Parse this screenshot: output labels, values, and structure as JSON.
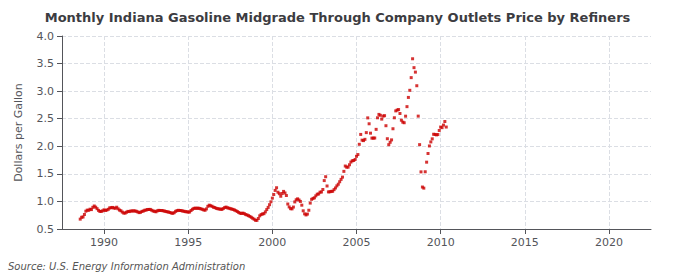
{
  "chart_data": {
    "type": "scatter",
    "title": "Monthly Indiana Gasoline Midgrade Through Company Outlets Price by Refiners",
    "ylabel": "Dollars per Gallon",
    "source": "Source: U.S. Energy Information Administration",
    "color": "#cc0000",
    "marker": "square",
    "grid": true,
    "xlim": [
      1987.5,
      2022.5
    ],
    "xticks": [
      1990,
      1995,
      2000,
      2005,
      2010,
      2015,
      2020
    ],
    "ylim": [
      0.5,
      4.0
    ],
    "yticks": [
      0.5,
      {
        "value": 1.0,
        "label": "1.0"
      },
      1.5,
      {
        "value": 2.0,
        "label": "2.0"
      },
      2.5,
      {
        "value": 3.0,
        "label": "3.0"
      },
      3.5,
      {
        "value": 4.0,
        "label": "4.0"
      }
    ],
    "x": [
      1988.583,
      1988.667,
      1988.75,
      1988.833,
      1988.917,
      1989.0,
      1989.083,
      1989.167,
      1989.25,
      1989.333,
      1989.417,
      1989.5,
      1989.583,
      1989.667,
      1989.75,
      1989.833,
      1989.917,
      1990.0,
      1990.083,
      1990.167,
      1990.25,
      1990.333,
      1990.417,
      1990.5,
      1990.583,
      1990.667,
      1990.75,
      1990.833,
      1990.917,
      1991.0,
      1991.083,
      1991.167,
      1991.25,
      1991.333,
      1991.417,
      1991.5,
      1991.583,
      1991.667,
      1991.75,
      1991.833,
      1991.917,
      1992.0,
      1992.083,
      1992.167,
      1992.25,
      1992.333,
      1992.417,
      1992.5,
      1992.583,
      1992.667,
      1992.75,
      1992.833,
      1992.917,
      1993.0,
      1993.083,
      1993.167,
      1993.25,
      1993.333,
      1993.417,
      1993.5,
      1993.583,
      1993.667,
      1993.75,
      1993.833,
      1993.917,
      1994.0,
      1994.083,
      1994.167,
      1994.25,
      1994.333,
      1994.417,
      1994.5,
      1994.583,
      1994.667,
      1994.75,
      1994.833,
      1994.917,
      1995.0,
      1995.083,
      1995.167,
      1995.25,
      1995.333,
      1995.417,
      1995.5,
      1995.583,
      1995.667,
      1995.75,
      1995.833,
      1995.917,
      1996.0,
      1996.083,
      1996.167,
      1996.25,
      1996.333,
      1996.417,
      1996.5,
      1996.583,
      1996.667,
      1996.75,
      1996.833,
      1996.917,
      1997.0,
      1997.083,
      1997.167,
      1997.25,
      1997.333,
      1997.417,
      1997.5,
      1997.583,
      1997.667,
      1997.75,
      1997.833,
      1997.917,
      1998.0,
      1998.083,
      1998.167,
      1998.25,
      1998.333,
      1998.417,
      1998.5,
      1998.583,
      1998.667,
      1998.75,
      1998.833,
      1998.917,
      1999.0,
      1999.083,
      1999.167,
      1999.25,
      1999.333,
      1999.417,
      1999.5,
      1999.583,
      1999.667,
      1999.75,
      1999.833,
      1999.917,
      2000.0,
      2000.083,
      2000.167,
      2000.25,
      2000.333,
      2000.417,
      2000.5,
      2000.583,
      2000.667,
      2000.75,
      2000.833,
      2000.917,
      2001.0,
      2001.083,
      2001.167,
      2001.25,
      2001.333,
      2001.417,
      2001.5,
      2001.583,
      2001.667,
      2001.75,
      2001.833,
      2001.917,
      2002.0,
      2002.083,
      2002.167,
      2002.25,
      2002.333,
      2002.417,
      2002.5,
      2002.583,
      2002.667,
      2002.75,
      2002.833,
      2002.917,
      2003.0,
      2003.083,
      2003.167,
      2003.25,
      2003.333,
      2003.417,
      2003.5,
      2003.583,
      2003.667,
      2003.75,
      2003.833,
      2003.917,
      2004.0,
      2004.083,
      2004.167,
      2004.25,
      2004.333,
      2004.417,
      2004.5,
      2004.583,
      2004.667,
      2004.75,
      2004.833,
      2004.917,
      2005.0,
      2005.083,
      2005.167,
      2005.25,
      2005.333,
      2005.417,
      2005.5,
      2005.583,
      2005.667,
      2005.75,
      2005.833,
      2005.917,
      2006.0,
      2006.083,
      2006.167,
      2006.25,
      2006.333,
      2006.417,
      2006.5,
      2006.583,
      2006.667,
      2006.75,
      2006.833,
      2006.917,
      2007.0,
      2007.083,
      2007.167,
      2007.25,
      2007.333,
      2007.417,
      2007.5,
      2007.583,
      2007.667,
      2007.75,
      2007.833,
      2007.917,
      2008.0,
      2008.083,
      2008.167,
      2008.25,
      2008.333,
      2008.417,
      2008.5,
      2008.583,
      2008.667,
      2008.75,
      2008.833,
      2008.917,
      2009.0,
      2009.083,
      2009.167,
      2009.25,
      2009.333,
      2009.417,
      2009.5,
      2009.583,
      2009.667,
      2009.75,
      2009.833,
      2009.917,
      2010.0,
      2010.083,
      2010.167,
      2010.25,
      2010.333
    ],
    "values": [
      0.679,
      0.713,
      0.718,
      0.763,
      0.823,
      0.842,
      0.839,
      0.859,
      0.852,
      0.893,
      0.917,
      0.896,
      0.869,
      0.838,
      0.819,
      0.819,
      0.83,
      0.848,
      0.836,
      0.844,
      0.857,
      0.883,
      0.885,
      0.891,
      0.88,
      0.876,
      0.895,
      0.866,
      0.843,
      0.831,
      0.807,
      0.789,
      0.788,
      0.804,
      0.819,
      0.816,
      0.826,
      0.827,
      0.828,
      0.828,
      0.821,
      0.81,
      0.797,
      0.803,
      0.819,
      0.826,
      0.84,
      0.843,
      0.854,
      0.855,
      0.855,
      0.84,
      0.826,
      0.821,
      0.812,
      0.83,
      0.838,
      0.836,
      0.836,
      0.831,
      0.826,
      0.818,
      0.812,
      0.808,
      0.799,
      0.79,
      0.784,
      0.796,
      0.82,
      0.833,
      0.839,
      0.836,
      0.834,
      0.826,
      0.822,
      0.815,
      0.812,
      0.807,
      0.808,
      0.835,
      0.857,
      0.873,
      0.879,
      0.874,
      0.879,
      0.873,
      0.866,
      0.858,
      0.847,
      0.84,
      0.864,
      0.911,
      0.932,
      0.921,
      0.912,
      0.895,
      0.889,
      0.874,
      0.869,
      0.862,
      0.861,
      0.855,
      0.871,
      0.889,
      0.898,
      0.884,
      0.878,
      0.869,
      0.862,
      0.855,
      0.844,
      0.832,
      0.818,
      0.8,
      0.786,
      0.782,
      0.788,
      0.779,
      0.762,
      0.754,
      0.742,
      0.728,
      0.712,
      0.694,
      0.677,
      0.658,
      0.657,
      0.69,
      0.739,
      0.762,
      0.773,
      0.778,
      0.81,
      0.852,
      0.892,
      0.941,
      0.993,
      1.06,
      1.126,
      1.2,
      1.248,
      1.167,
      1.14,
      1.094,
      1.144,
      1.182,
      1.153,
      1.107,
      0.953,
      0.9,
      0.869,
      0.865,
      0.898,
      0.991,
      1.03,
      1.047,
      1.026,
      1.0,
      0.932,
      0.83,
      0.775,
      0.755,
      0.771,
      0.84,
      0.97,
      1.038,
      1.055,
      1.065,
      1.101,
      1.131,
      1.135,
      1.168,
      1.171,
      1.216,
      1.378,
      1.448,
      1.28,
      1.173,
      1.175,
      1.182,
      1.184,
      1.214,
      1.244,
      1.282,
      1.312,
      1.357,
      1.4,
      1.441,
      1.545,
      1.642,
      1.621,
      1.622,
      1.665,
      1.714,
      1.737,
      1.742,
      1.76,
      1.818,
      1.85,
      2.036,
      2.215,
      2.111,
      2.103,
      2.126,
      2.248,
      2.515,
      2.408,
      2.238,
      2.148,
      2.148,
      2.15,
      2.307,
      2.517,
      2.578,
      2.562,
      2.493,
      2.548,
      2.555,
      2.373,
      2.137,
      2.029,
      2.073,
      2.116,
      2.318,
      2.517,
      2.642,
      2.657,
      2.666,
      2.595,
      2.473,
      2.438,
      2.427,
      2.546,
      2.719,
      2.886,
      3.015,
      3.245,
      3.587,
      3.426,
      3.345,
      3.098,
      2.547,
      2.03,
      1.536,
      1.261,
      1.241,
      1.538,
      1.712,
      1.869,
      2.006,
      2.079,
      2.135,
      2.218,
      2.215,
      2.207,
      2.213,
      2.287,
      2.349,
      2.338,
      2.385,
      2.449,
      2.349
    ]
  }
}
